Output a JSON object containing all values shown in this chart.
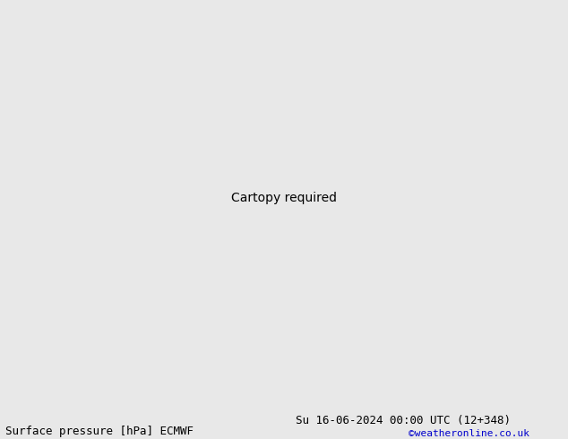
{
  "title_left": "Surface pressure [hPa] ECMWF",
  "title_right": "Su 16-06-2024 00:00 UTC (12+348)",
  "credit": "©weatheronline.co.uk",
  "bg_color": "#e8e8e8",
  "land_color": "#c8e8a0",
  "coast_color": "#808080",
  "sea_color": "#e8e8e8",
  "title_fontsize": 9,
  "credit_fontsize": 8,
  "credit_color": "#0000cc",
  "lon_min": -26.0,
  "lon_max": 22.5,
  "lat_min": 42.0,
  "lat_max": 72.0,
  "fig_width": 6.34,
  "fig_height": 4.9,
  "dpi": 100
}
